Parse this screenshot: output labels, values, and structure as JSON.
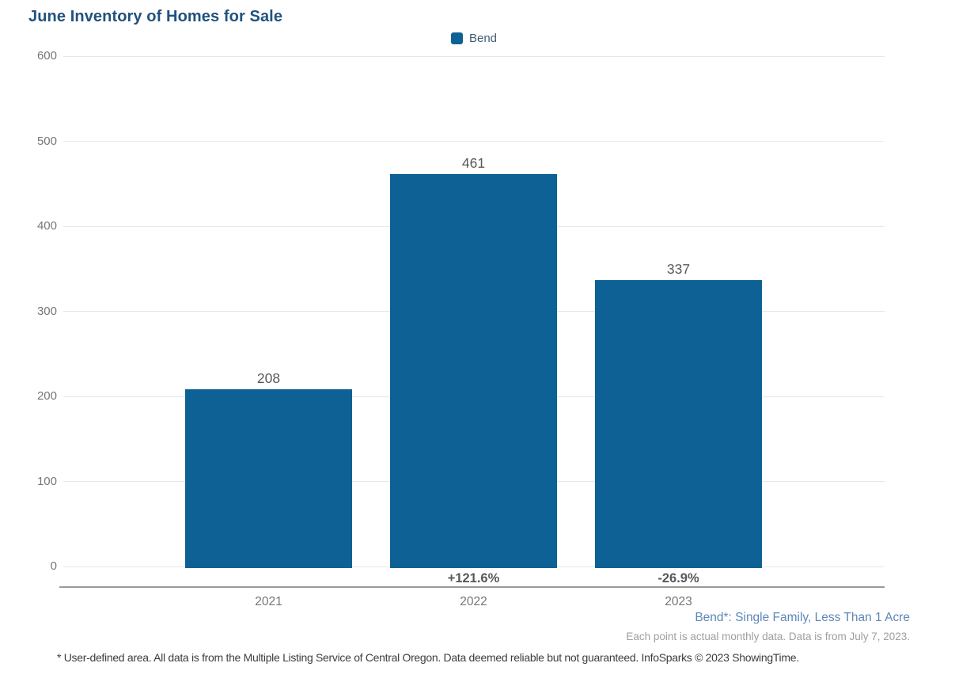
{
  "chart_data": {
    "type": "bar",
    "title": "June Inventory of Homes for Sale",
    "legend": [
      {
        "name": "Bend",
        "color": "#0e6195"
      }
    ],
    "legend_position": "top-center",
    "categories": [
      "2021",
      "2022",
      "2023"
    ],
    "series": [
      {
        "name": "Bend",
        "values": [
          208,
          461,
          337
        ]
      }
    ],
    "value_labels": [
      "208",
      "461",
      "337"
    ],
    "pct_change_labels": [
      "",
      "+121.6%",
      "-26.9%"
    ],
    "xlabel": "",
    "ylabel": "",
    "ylim": [
      0,
      600
    ],
    "yticks": [
      0,
      100,
      200,
      300,
      400,
      500,
      600
    ],
    "grid": true,
    "bar_color": "#0e6195"
  },
  "footnotes": {
    "series_definition": "Bend*: Single Family, Less Than 1 Acre",
    "data_note": "Each point is actual monthly data. Data is from July 7, 2023.",
    "disclaimer": "* User-defined area. All data is from the Multiple Listing Service of Central Oregon. Data deemed reliable but not guaranteed. InfoSparks © 2023 ShowingTime."
  },
  "colors": {
    "bar": "#0e6195",
    "title": "#21527e",
    "gridline": "#e7e7e7",
    "axis_line": "#9a9a9a",
    "tick_label": "#767676",
    "value_label": "#58595b",
    "footnote_blue": "#5d87b8",
    "footnote_gray": "#9e9e9e"
  }
}
